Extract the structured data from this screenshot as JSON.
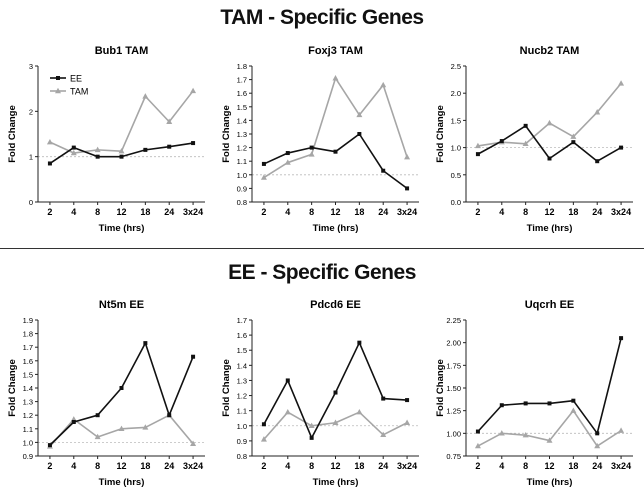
{
  "titles": {
    "tam": "TAM - Specific Genes",
    "ee": "EE - Specific Genes"
  },
  "colors": {
    "ee": "#111111",
    "tam": "#a6a6a6",
    "baseline": "#bbbbbb"
  },
  "chart_data": [
    {
      "type": "line",
      "title": "Bub1 TAM",
      "xlabel": "Time (hrs)",
      "ylabel": "Fold Change",
      "categories": [
        "2",
        "4",
        "8",
        "12",
        "18",
        "24",
        "3x24"
      ],
      "ylim": [
        0,
        3
      ],
      "yticks": [
        "0",
        "1",
        "2",
        "3"
      ],
      "baseline": 1,
      "legend": "top-left",
      "series": [
        {
          "name": "EE",
          "marker": "square",
          "values": [
            0.85,
            1.2,
            1.0,
            1.0,
            1.15,
            1.22,
            1.3
          ]
        },
        {
          "name": "TAM",
          "marker": "triangle",
          "values": [
            1.32,
            1.08,
            1.15,
            1.12,
            2.33,
            1.77,
            2.45
          ]
        }
      ]
    },
    {
      "type": "line",
      "title": "Foxj3 TAM",
      "xlabel": "Time (hrs)",
      "ylabel": "Fold Change",
      "categories": [
        "2",
        "4",
        "8",
        "12",
        "18",
        "24",
        "3x24"
      ],
      "ylim": [
        0.8,
        1.8
      ],
      "yticks": [
        "0.8",
        "0.9",
        "1.0",
        "1.1",
        "1.2",
        "1.3",
        "1.4",
        "1.5",
        "1.6",
        "1.7",
        "1.8"
      ],
      "baseline": 1,
      "series": [
        {
          "marker": "square",
          "values": [
            1.08,
            1.16,
            1.2,
            1.17,
            1.3,
            1.03,
            0.9
          ]
        },
        {
          "marker": "triangle",
          "values": [
            0.98,
            1.09,
            1.15,
            1.71,
            1.44,
            1.66,
            1.13
          ]
        }
      ]
    },
    {
      "type": "line",
      "title": "Nucb2 TAM",
      "xlabel": "Time (hrs)",
      "ylabel": "Fold Change",
      "categories": [
        "2",
        "4",
        "8",
        "12",
        "18",
        "24",
        "3x24"
      ],
      "ylim": [
        0,
        2.5
      ],
      "yticks": [
        "0.0",
        "0.5",
        "1.0",
        "1.5",
        "2.0",
        "2.5"
      ],
      "baseline": 1,
      "series": [
        {
          "marker": "square",
          "values": [
            0.88,
            1.12,
            1.4,
            0.8,
            1.1,
            0.75,
            1.0
          ]
        },
        {
          "marker": "triangle",
          "values": [
            1.03,
            1.1,
            1.07,
            1.45,
            1.2,
            1.65,
            2.18
          ]
        }
      ]
    },
    {
      "type": "line",
      "title": "Nt5m EE",
      "xlabel": "Time (hrs)",
      "ylabel": "Fold Change",
      "categories": [
        "2",
        "4",
        "8",
        "12",
        "18",
        "24",
        "3x24"
      ],
      "ylim": [
        0.9,
        1.9
      ],
      "yticks": [
        "0.9",
        "1.0",
        "1.1",
        "1.2",
        "1.3",
        "1.4",
        "1.5",
        "1.6",
        "1.7",
        "1.8",
        "1.9"
      ],
      "baseline": 1,
      "series": [
        {
          "marker": "square",
          "values": [
            0.98,
            1.15,
            1.2,
            1.4,
            1.73,
            1.2,
            1.63
          ]
        },
        {
          "marker": "triangle",
          "values": [
            0.97,
            1.17,
            1.04,
            1.1,
            1.11,
            1.2,
            0.99
          ]
        }
      ]
    },
    {
      "type": "line",
      "title": "Pdcd6 EE",
      "xlabel": "Time (hrs)",
      "ylabel": "Fold Change",
      "categories": [
        "2",
        "4",
        "8",
        "12",
        "18",
        "24",
        "3x24"
      ],
      "ylim": [
        0.8,
        1.7
      ],
      "yticks": [
        "0.8",
        "0.9",
        "1.0",
        "1.1",
        "1.2",
        "1.3",
        "1.4",
        "1.5",
        "1.6",
        "1.7"
      ],
      "baseline": 1,
      "series": [
        {
          "marker": "square",
          "values": [
            1.01,
            1.3,
            0.92,
            1.22,
            1.55,
            1.18,
            1.17
          ]
        },
        {
          "marker": "triangle",
          "values": [
            0.91,
            1.09,
            1.0,
            1.02,
            1.09,
            0.94,
            1.02
          ]
        }
      ]
    },
    {
      "type": "line",
      "title": "Uqcrh EE",
      "xlabel": "Time (hrs)",
      "ylabel": "Fold Change",
      "categories": [
        "2",
        "4",
        "8",
        "12",
        "18",
        "24",
        "3x24"
      ],
      "ylim": [
        0.75,
        2.25
      ],
      "yticks": [
        "0.75",
        "1.00",
        "1.25",
        "1.50",
        "1.75",
        "2.00",
        "2.25"
      ],
      "baseline": 1,
      "series": [
        {
          "marker": "square",
          "values": [
            1.02,
            1.31,
            1.33,
            1.33,
            1.36,
            1.0,
            2.05
          ]
        },
        {
          "marker": "triangle",
          "values": [
            0.86,
            1.0,
            0.98,
            0.92,
            1.25,
            0.86,
            1.03
          ]
        }
      ]
    }
  ]
}
